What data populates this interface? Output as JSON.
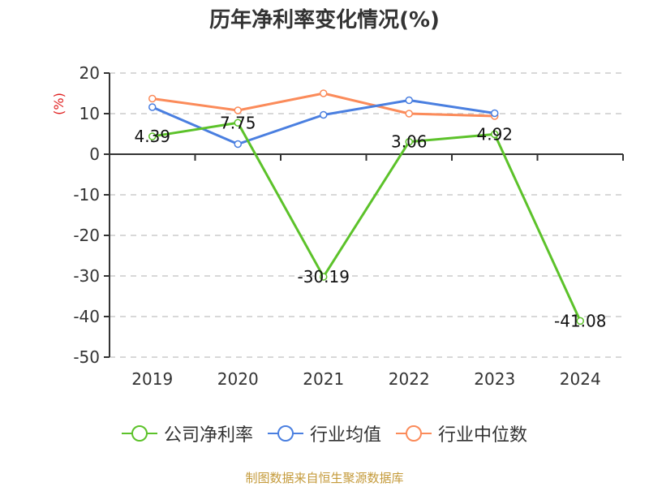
{
  "title": "历年净利率变化情况(%)",
  "y_unit_label": "(%)",
  "source": "制图数据来自恒生聚源数据库",
  "legend": [
    {
      "label": "公司净利率",
      "color": "#5cc22a"
    },
    {
      "label": "行业均值",
      "color": "#4a7fe0"
    },
    {
      "label": "行业中位数",
      "color": "#fb8b5a"
    }
  ],
  "chart_data": {
    "type": "line",
    "title": "历年净利率变化情况(%)",
    "xlabel": "",
    "ylabel": "(%)",
    "categories": [
      "2019",
      "2020",
      "2021",
      "2022",
      "2023",
      "2024"
    ],
    "ylim": [
      -50,
      20
    ],
    "yticks": [
      20,
      10,
      0,
      -10,
      -20,
      -30,
      -40,
      -50
    ],
    "grid": true,
    "legend_position": "bottom",
    "series": [
      {
        "name": "公司净利率",
        "color": "#5cc22a",
        "values": [
          4.39,
          7.75,
          -30.19,
          3.06,
          4.92,
          -41.08
        ],
        "labels": [
          "4.39",
          "7.75",
          "-30.19",
          "3.06",
          "4.92",
          "-41.08"
        ]
      },
      {
        "name": "行业均值",
        "color": "#4a7fe0",
        "values": [
          11.6,
          2.5,
          9.7,
          13.3,
          10.1,
          null
        ]
      },
      {
        "name": "行业中位数",
        "color": "#fb8b5a",
        "values": [
          13.7,
          10.8,
          15.0,
          10.0,
          9.4,
          null
        ]
      }
    ]
  }
}
